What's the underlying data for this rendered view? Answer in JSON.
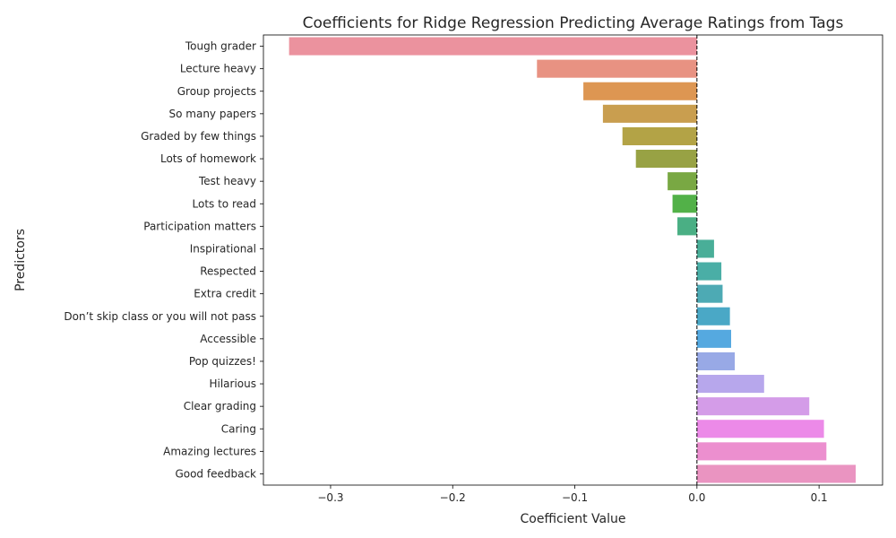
{
  "chart_data": {
    "type": "bar",
    "orientation": "horizontal",
    "title": "Coefficients for Ridge Regression Predicting Average Ratings from Tags",
    "xlabel": "Coefficient Value",
    "ylabel": "Predictors",
    "xlim": [
      -0.355,
      0.152
    ],
    "xticks": [
      -0.3,
      -0.2,
      -0.1,
      0.0,
      0.1
    ],
    "xtick_labels": [
      "−0.3",
      "−0.2",
      "−0.1",
      "0.0",
      "0.1"
    ],
    "reference_line": {
      "x": 0.0,
      "style": "dashed",
      "color": "#000000"
    },
    "grid": false,
    "categories": [
      "Tough grader",
      "Lecture heavy",
      "Group projects",
      "So many papers",
      "Graded by few things",
      "Lots of homework",
      "Test heavy",
      "Lots to read",
      "Participation matters",
      "Inspirational",
      "Respected",
      "Extra credit",
      "Don’t skip class or you will not pass",
      "Accessible",
      "Pop quizzes!",
      "Hilarious",
      "Clear grading",
      "Caring",
      "Amazing lectures",
      "Good feedback"
    ],
    "values": [
      -0.334,
      -0.131,
      -0.093,
      -0.077,
      -0.061,
      -0.05,
      -0.024,
      -0.02,
      -0.016,
      0.014,
      0.02,
      0.021,
      0.027,
      0.028,
      0.031,
      0.055,
      0.092,
      0.104,
      0.106,
      0.13
    ],
    "colors": [
      "#eb929e",
      "#e89282",
      "#dd9652",
      "#c99e4f",
      "#b3a346",
      "#98a244",
      "#79a843",
      "#52b148",
      "#4aaf84",
      "#49ae98",
      "#4aaea6",
      "#4daab4",
      "#4aa8c6",
      "#55a9e0",
      "#98a9e6",
      "#b7a7ec",
      "#d49ce8",
      "#ec8ae8",
      "#ec8fcf",
      "#ea94c1"
    ]
  }
}
